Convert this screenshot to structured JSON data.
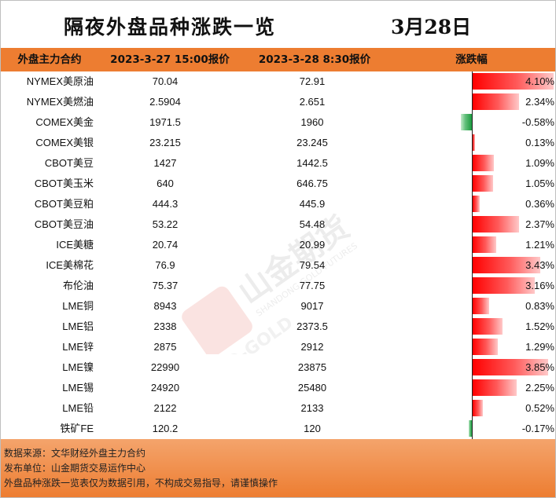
{
  "title": "隔夜外盘品种涨跌一览",
  "date": "3月28日",
  "headers": {
    "name": "外盘主力合约",
    "price1": "2023-3-27 15:00报价",
    "price2": "2023-3-28 8:30报价",
    "change": "涨跌幅"
  },
  "watermark": {
    "brand": "山金期货",
    "en1": "SHANDONG GOLD FUTURES",
    "en2": "SD-GOLD"
  },
  "rows": [
    {
      "name": "NYMEX美原油",
      "p1": "70.04",
      "p2": "72.91",
      "chg": "4.10%"
    },
    {
      "name": "NYMEX美燃油",
      "p1": "2.5904",
      "p2": "2.651",
      "chg": "2.34%"
    },
    {
      "name": "COMEX美金",
      "p1": "1971.5",
      "p2": "1960",
      "chg": "-0.58%"
    },
    {
      "name": "COMEX美银",
      "p1": "23.215",
      "p2": "23.245",
      "chg": "0.13%"
    },
    {
      "name": "CBOT美豆",
      "p1": "1427",
      "p2": "1442.5",
      "chg": "1.09%"
    },
    {
      "name": "CBOT美玉米",
      "p1": "640",
      "p2": "646.75",
      "chg": "1.05%"
    },
    {
      "name": "CBOT美豆粕",
      "p1": "444.3",
      "p2": "445.9",
      "chg": "0.36%"
    },
    {
      "name": "CBOT美豆油",
      "p1": "53.22",
      "p2": "54.48",
      "chg": "2.37%"
    },
    {
      "name": "ICE美糖",
      "p1": "20.74",
      "p2": "20.99",
      "chg": "1.21%"
    },
    {
      "name": "ICE美棉花",
      "p1": "76.9",
      "p2": "79.54",
      "chg": "3.43%"
    },
    {
      "name": "布伦油",
      "p1": "75.37",
      "p2": "77.75",
      "chg": "3.16%"
    },
    {
      "name": "LME铜",
      "p1": "8943",
      "p2": "9017",
      "chg": "0.83%"
    },
    {
      "name": "LME铝",
      "p1": "2338",
      "p2": "2373.5",
      "chg": "1.52%"
    },
    {
      "name": "LME锌",
      "p1": "2875",
      "p2": "2912",
      "chg": "1.29%"
    },
    {
      "name": "LME镍",
      "p1": "22990",
      "p2": "23875",
      "chg": "3.85%"
    },
    {
      "name": "LME锡",
      "p1": "24920",
      "p2": "25480",
      "chg": "2.25%"
    },
    {
      "name": "LME铅",
      "p1": "2122",
      "p2": "2133",
      "chg": "0.52%"
    },
    {
      "name": "铁矿FE",
      "p1": "120.2",
      "p2": "120",
      "chg": "-0.17%"
    }
  ],
  "footer": [
    "数据来源：文华财经外盘主力合约",
    "发布单位：山金期货交易运作中心",
    "外盘品种涨跌一览表仅为数据引用，不构成交易指导，请谨慎操作"
  ],
  "colors": {
    "header": "#ed7d31",
    "positive": "#ff0000",
    "negative": "#1a9a3e"
  },
  "chart_data": {
    "type": "table",
    "title": "隔夜外盘品种涨跌一览",
    "columns": [
      "外盘主力合约",
      "2023-3-27 15:00报价",
      "2023-3-28 8:30报价",
      "涨跌幅"
    ],
    "change_percent": [
      4.1,
      2.34,
      -0.58,
      0.13,
      1.09,
      1.05,
      0.36,
      2.37,
      1.21,
      3.43,
      3.16,
      0.83,
      1.52,
      1.29,
      3.85,
      2.25,
      0.52,
      -0.17
    ]
  }
}
